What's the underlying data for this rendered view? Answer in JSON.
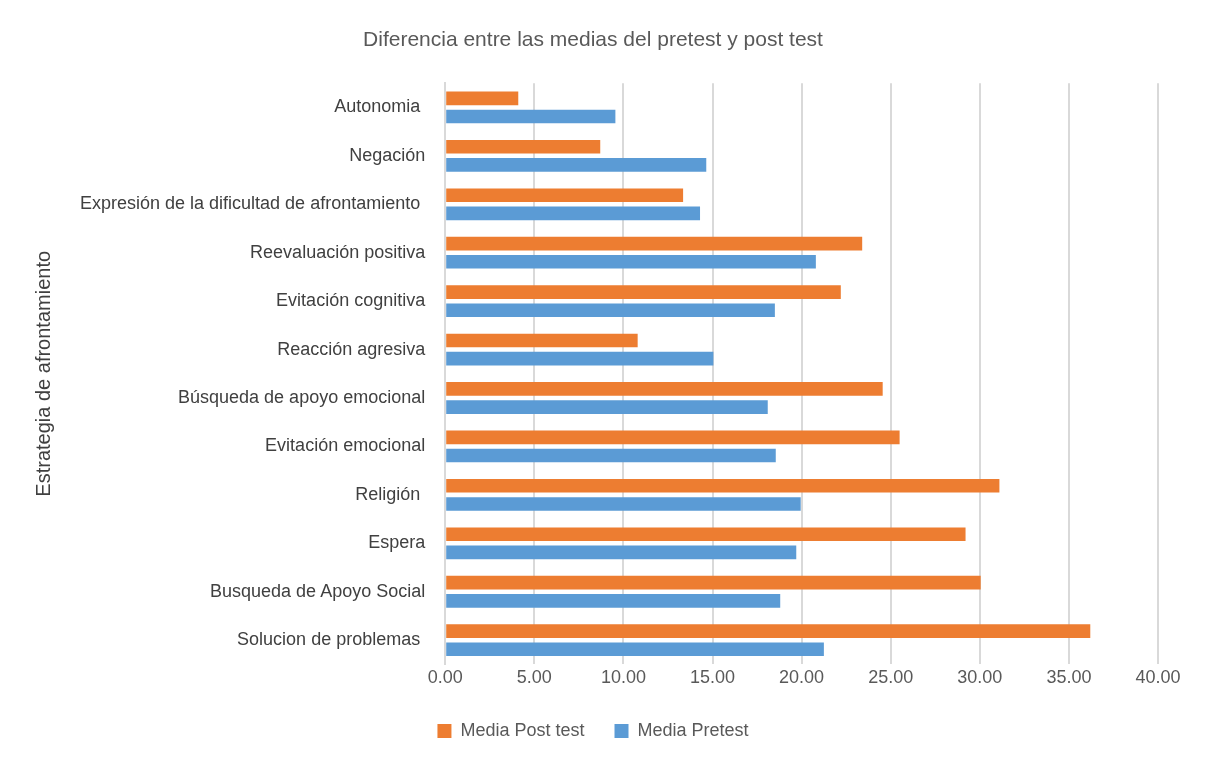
{
  "chart_data": {
    "type": "bar",
    "orientation": "horizontal",
    "title": "Diferencia entre las medias del pretest y post test",
    "ylabel": "Estrategia de afrontamiento",
    "categories": [
      "Autonomia ",
      "Negación",
      "Expresión de la dificultad de afrontamiento ",
      "Reevaluación positiva",
      "Evitación cognitiva",
      "Reacción agresiva",
      "Búsqueda de apoyo emocional",
      "Evitación emocional",
      "Religión ",
      "Espera",
      "Busqueda de Apoyo Social",
      "Solucion de problemas "
    ],
    "series": [
      {
        "name": "Media Post test",
        "color": "#ed7d31",
        "values": [
          4.1,
          8.7,
          13.35,
          23.4,
          22.2,
          10.8,
          24.55,
          25.5,
          31.1,
          29.2,
          30.05,
          36.2
        ]
      },
      {
        "name": "Media Pretest",
        "color": "#5b9bd5",
        "values": [
          9.55,
          14.65,
          14.3,
          20.8,
          18.5,
          15.05,
          18.1,
          18.55,
          19.95,
          19.7,
          18.8,
          21.25
        ]
      }
    ],
    "xlim": [
      0,
      40
    ],
    "xticks": [
      {
        "value": 0,
        "label": "0.00"
      },
      {
        "value": 5,
        "label": "5.00"
      },
      {
        "value": 10,
        "label": "10.00"
      },
      {
        "value": 15,
        "label": "15.00"
      },
      {
        "value": 20,
        "label": "20.00"
      },
      {
        "value": 25,
        "label": "25.00"
      },
      {
        "value": 30,
        "label": "30.00"
      },
      {
        "value": 35,
        "label": "35.00"
      },
      {
        "value": 40,
        "label": "40.00"
      }
    ],
    "grid": "x",
    "legend": "bottom"
  }
}
